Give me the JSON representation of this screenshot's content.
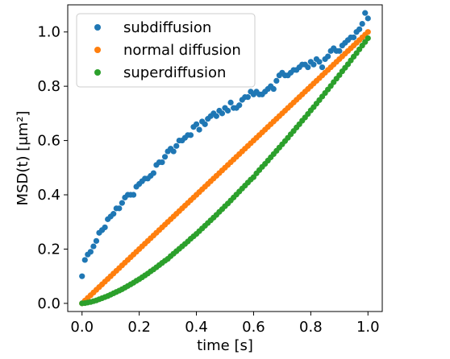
{
  "chart_data": {
    "type": "scatter",
    "xlabel": "time [s]",
    "ylabel": "MSD(t)  [μm²]",
    "xlim": [
      -0.05,
      1.05
    ],
    "ylim": [
      -0.03,
      1.1
    ],
    "xticks": [
      0.0,
      0.2,
      0.4,
      0.6,
      0.8,
      1.0
    ],
    "xtick_labels": [
      "0.0",
      "0.2",
      "0.4",
      "0.6",
      "0.8",
      "1.0"
    ],
    "yticks": [
      0.0,
      0.2,
      0.4,
      0.6,
      0.8,
      1.0
    ],
    "ytick_labels": [
      "0.0",
      "0.2",
      "0.4",
      "0.6",
      "0.8",
      "1.0"
    ],
    "grid": false,
    "legend_position": "top-left",
    "series": [
      {
        "name": "subdiffusion",
        "color": "#1f77b4",
        "x": [
          0.0,
          0.01,
          0.02,
          0.03,
          0.04,
          0.05,
          0.06,
          0.07,
          0.08,
          0.09,
          0.1,
          0.11,
          0.12,
          0.13,
          0.14,
          0.15,
          0.16,
          0.17,
          0.18,
          0.19,
          0.2,
          0.21,
          0.22,
          0.23,
          0.24,
          0.25,
          0.26,
          0.27,
          0.28,
          0.29,
          0.3,
          0.31,
          0.32,
          0.33,
          0.34,
          0.35,
          0.36,
          0.37,
          0.38,
          0.39,
          0.4,
          0.41,
          0.42,
          0.43,
          0.44,
          0.45,
          0.46,
          0.47,
          0.48,
          0.49,
          0.5,
          0.51,
          0.52,
          0.53,
          0.54,
          0.55,
          0.56,
          0.57,
          0.58,
          0.59,
          0.6,
          0.61,
          0.62,
          0.63,
          0.64,
          0.65,
          0.66,
          0.67,
          0.68,
          0.69,
          0.7,
          0.71,
          0.72,
          0.73,
          0.74,
          0.75,
          0.76,
          0.77,
          0.78,
          0.79,
          0.8,
          0.81,
          0.82,
          0.83,
          0.84,
          0.85,
          0.86,
          0.87,
          0.88,
          0.89,
          0.9,
          0.91,
          0.92,
          0.93,
          0.94,
          0.95,
          0.96,
          0.97,
          0.98,
          0.99,
          1.0
        ],
        "y": [
          0.1,
          0.16,
          0.18,
          0.19,
          0.21,
          0.23,
          0.26,
          0.27,
          0.28,
          0.31,
          0.32,
          0.33,
          0.35,
          0.35,
          0.37,
          0.39,
          0.4,
          0.4,
          0.4,
          0.43,
          0.44,
          0.45,
          0.46,
          0.46,
          0.47,
          0.48,
          0.51,
          0.52,
          0.52,
          0.54,
          0.56,
          0.57,
          0.56,
          0.58,
          0.6,
          0.6,
          0.61,
          0.62,
          0.62,
          0.65,
          0.66,
          0.64,
          0.67,
          0.66,
          0.68,
          0.69,
          0.7,
          0.69,
          0.71,
          0.7,
          0.72,
          0.71,
          0.74,
          0.72,
          0.72,
          0.73,
          0.75,
          0.76,
          0.76,
          0.78,
          0.77,
          0.78,
          0.77,
          0.77,
          0.78,
          0.79,
          0.8,
          0.79,
          0.82,
          0.84,
          0.85,
          0.84,
          0.84,
          0.85,
          0.86,
          0.86,
          0.87,
          0.88,
          0.88,
          0.87,
          0.89,
          0.88,
          0.9,
          0.89,
          0.87,
          0.9,
          0.91,
          0.93,
          0.94,
          0.93,
          0.93,
          0.95,
          0.96,
          0.97,
          0.98,
          0.98,
          1.0,
          1.01,
          1.03,
          1.07,
          1.05
        ]
      },
      {
        "name": "normal diffusion",
        "color": "#ff7f0e",
        "x": [
          0.0,
          0.01,
          0.02,
          0.03,
          0.04,
          0.05,
          0.06,
          0.07,
          0.08,
          0.09,
          0.1,
          0.11,
          0.12,
          0.13,
          0.14,
          0.15,
          0.16,
          0.17,
          0.18,
          0.19,
          0.2,
          0.21,
          0.22,
          0.23,
          0.24,
          0.25,
          0.26,
          0.27,
          0.28,
          0.29,
          0.3,
          0.31,
          0.32,
          0.33,
          0.34,
          0.35,
          0.36,
          0.37,
          0.38,
          0.39,
          0.4,
          0.41,
          0.42,
          0.43,
          0.44,
          0.45,
          0.46,
          0.47,
          0.48,
          0.49,
          0.5,
          0.51,
          0.52,
          0.53,
          0.54,
          0.55,
          0.56,
          0.57,
          0.58,
          0.59,
          0.6,
          0.61,
          0.62,
          0.63,
          0.64,
          0.65,
          0.66,
          0.67,
          0.68,
          0.69,
          0.7,
          0.71,
          0.72,
          0.73,
          0.74,
          0.75,
          0.76,
          0.77,
          0.78,
          0.79,
          0.8,
          0.81,
          0.82,
          0.83,
          0.84,
          0.85,
          0.86,
          0.87,
          0.88,
          0.89,
          0.9,
          0.91,
          0.92,
          0.93,
          0.94,
          0.95,
          0.96,
          0.97,
          0.98,
          0.99,
          1.0
        ],
        "y": [
          0.0,
          0.01,
          0.02,
          0.03,
          0.04,
          0.05,
          0.06,
          0.07,
          0.08,
          0.09,
          0.1,
          0.11,
          0.12,
          0.13,
          0.14,
          0.15,
          0.16,
          0.17,
          0.18,
          0.19,
          0.2,
          0.21,
          0.22,
          0.23,
          0.24,
          0.25,
          0.26,
          0.27,
          0.28,
          0.29,
          0.3,
          0.31,
          0.32,
          0.33,
          0.34,
          0.35,
          0.36,
          0.37,
          0.38,
          0.39,
          0.4,
          0.41,
          0.42,
          0.43,
          0.44,
          0.45,
          0.46,
          0.47,
          0.48,
          0.49,
          0.5,
          0.51,
          0.52,
          0.53,
          0.54,
          0.55,
          0.56,
          0.57,
          0.58,
          0.59,
          0.6,
          0.61,
          0.62,
          0.63,
          0.64,
          0.65,
          0.66,
          0.67,
          0.68,
          0.69,
          0.7,
          0.71,
          0.72,
          0.73,
          0.74,
          0.75,
          0.76,
          0.77,
          0.78,
          0.79,
          0.8,
          0.81,
          0.82,
          0.83,
          0.84,
          0.85,
          0.86,
          0.87,
          0.88,
          0.89,
          0.9,
          0.91,
          0.92,
          0.93,
          0.94,
          0.95,
          0.96,
          0.97,
          0.98,
          0.99,
          1.0
        ]
      },
      {
        "name": "superdiffusion",
        "color": "#2ca02c",
        "x": [
          0.0,
          0.01,
          0.02,
          0.03,
          0.04,
          0.05,
          0.06,
          0.07,
          0.08,
          0.09,
          0.1,
          0.11,
          0.12,
          0.13,
          0.14,
          0.15,
          0.16,
          0.17,
          0.18,
          0.19,
          0.2,
          0.21,
          0.22,
          0.23,
          0.24,
          0.25,
          0.26,
          0.27,
          0.28,
          0.29,
          0.3,
          0.31,
          0.32,
          0.33,
          0.34,
          0.35,
          0.36,
          0.37,
          0.38,
          0.39,
          0.4,
          0.41,
          0.42,
          0.43,
          0.44,
          0.45,
          0.46,
          0.47,
          0.48,
          0.49,
          0.5,
          0.51,
          0.52,
          0.53,
          0.54,
          0.55,
          0.56,
          0.57,
          0.58,
          0.59,
          0.6,
          0.61,
          0.62,
          0.63,
          0.64,
          0.65,
          0.66,
          0.67,
          0.68,
          0.69,
          0.7,
          0.71,
          0.72,
          0.73,
          0.74,
          0.75,
          0.76,
          0.77,
          0.78,
          0.79,
          0.8,
          0.81,
          0.82,
          0.83,
          0.84,
          0.85,
          0.86,
          0.87,
          0.88,
          0.89,
          0.9,
          0.91,
          0.92,
          0.93,
          0.94,
          0.95,
          0.96,
          0.97,
          0.98,
          0.99,
          1.0
        ],
        "y": [
          0.0,
          0.001,
          0.003,
          0.005,
          0.008,
          0.011,
          0.015,
          0.019,
          0.023,
          0.027,
          0.032,
          0.037,
          0.042,
          0.047,
          0.052,
          0.058,
          0.064,
          0.07,
          0.076,
          0.083,
          0.089,
          0.096,
          0.103,
          0.11,
          0.118,
          0.125,
          0.133,
          0.141,
          0.149,
          0.157,
          0.164,
          0.174,
          0.183,
          0.192,
          0.201,
          0.21,
          0.219,
          0.228,
          0.238,
          0.247,
          0.256,
          0.266,
          0.276,
          0.286,
          0.296,
          0.306,
          0.316,
          0.326,
          0.337,
          0.347,
          0.358,
          0.368,
          0.379,
          0.39,
          0.401,
          0.412,
          0.423,
          0.434,
          0.445,
          0.456,
          0.465,
          0.479,
          0.491,
          0.503,
          0.514,
          0.526,
          0.538,
          0.55,
          0.562,
          0.574,
          0.586,
          0.598,
          0.61,
          0.623,
          0.635,
          0.648,
          0.66,
          0.673,
          0.685,
          0.698,
          0.711,
          0.723,
          0.736,
          0.749,
          0.762,
          0.775,
          0.788,
          0.801,
          0.815,
          0.828,
          0.841,
          0.855,
          0.868,
          0.881,
          0.895,
          0.909,
          0.922,
          0.936,
          0.95,
          0.963,
          0.977
        ]
      }
    ]
  }
}
